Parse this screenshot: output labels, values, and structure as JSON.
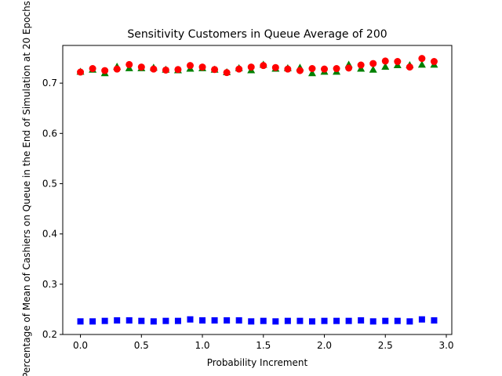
{
  "chart_data": {
    "type": "scatter",
    "title": "Sensitivity Customers in Queue Average of 200",
    "xlabel": "Probability Increment",
    "ylabel": "Percentage of Mean of Cashiers on Queue in the End of Simulation at 20 Epochs",
    "xlim": [
      -0.145,
      3.045
    ],
    "ylim": [
      0.2,
      0.775
    ],
    "xticks": [
      "0.0",
      "0.5",
      "1.0",
      "1.5",
      "2.0",
      "2.5",
      "3.0"
    ],
    "xtick_values": [
      0,
      0.5,
      1.0,
      1.5,
      2.0,
      2.5,
      3.0
    ],
    "yticks": [
      "0.2",
      "0.3",
      "0.4",
      "0.5",
      "0.6",
      "0.7"
    ],
    "ytick_values": [
      0.2,
      0.3,
      0.4,
      0.5,
      0.6,
      0.7
    ],
    "grid": false,
    "x": [
      0.0,
      0.1,
      0.2,
      0.3,
      0.4,
      0.5,
      0.6,
      0.7,
      0.8,
      0.9,
      1.0,
      1.1,
      1.2,
      1.3,
      1.4,
      1.5,
      1.6,
      1.7,
      1.8,
      1.9,
      2.0,
      2.1,
      2.2,
      2.3,
      2.4,
      2.5,
      2.6,
      2.7,
      2.8,
      2.9
    ],
    "series": [
      {
        "marker": "triangle",
        "color": "#008000",
        "values": [
          0.723,
          0.727,
          0.72,
          0.733,
          0.73,
          0.73,
          0.731,
          0.727,
          0.726,
          0.729,
          0.73,
          0.727,
          0.722,
          0.73,
          0.726,
          0.737,
          0.729,
          0.73,
          0.731,
          0.72,
          0.723,
          0.723,
          0.737,
          0.729,
          0.727,
          0.733,
          0.736,
          0.736,
          0.737,
          0.737
        ]
      },
      {
        "marker": "circle",
        "color": "#ff0000",
        "values": [
          0.722,
          0.729,
          0.725,
          0.728,
          0.737,
          0.732,
          0.728,
          0.726,
          0.727,
          0.735,
          0.732,
          0.727,
          0.721,
          0.728,
          0.732,
          0.735,
          0.731,
          0.728,
          0.725,
          0.729,
          0.728,
          0.729,
          0.73,
          0.736,
          0.739,
          0.744,
          0.743,
          0.732,
          0.749,
          0.743
        ]
      },
      {
        "marker": "square",
        "color": "#0000ff",
        "values": [
          0.226,
          0.226,
          0.227,
          0.228,
          0.228,
          0.227,
          0.226,
          0.227,
          0.227,
          0.23,
          0.228,
          0.228,
          0.228,
          0.228,
          0.226,
          0.227,
          0.226,
          0.227,
          0.227,
          0.226,
          0.227,
          0.227,
          0.227,
          0.228,
          0.226,
          0.227,
          0.227,
          0.226,
          0.23,
          0.228
        ]
      }
    ]
  }
}
